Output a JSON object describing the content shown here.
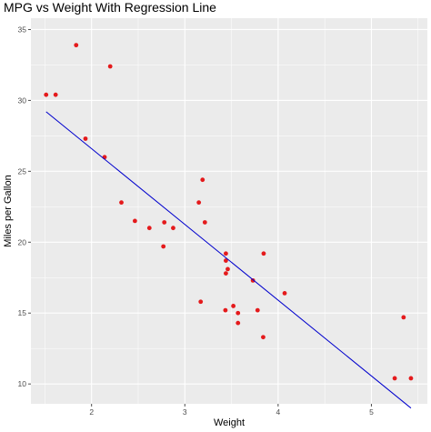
{
  "chart_data": {
    "type": "scatter",
    "title": "MPG vs Weight With Regression Line",
    "xlabel": "Weight",
    "ylabel": "Miles per Gallon",
    "xlim": [
      1.35,
      5.6
    ],
    "ylim": [
      8.6,
      35.8
    ],
    "x_ticks": [
      2,
      3,
      4,
      5
    ],
    "y_ticks": [
      10,
      15,
      20,
      25,
      30,
      35
    ],
    "grid": true,
    "legend": "none",
    "colors": {
      "panel": "#EBEBEB",
      "grid": "#FFFFFF",
      "points": "#E41A1C",
      "line": "#0000CD",
      "tick": "#4D4D4D"
    },
    "points": [
      {
        "x": 1.513,
        "y": 30.4
      },
      {
        "x": 1.615,
        "y": 30.4
      },
      {
        "x": 1.835,
        "y": 33.9
      },
      {
        "x": 1.935,
        "y": 27.3
      },
      {
        "x": 2.14,
        "y": 26.0
      },
      {
        "x": 2.2,
        "y": 32.4
      },
      {
        "x": 2.32,
        "y": 22.8
      },
      {
        "x": 2.465,
        "y": 21.5
      },
      {
        "x": 2.62,
        "y": 21.0
      },
      {
        "x": 2.77,
        "y": 19.7
      },
      {
        "x": 2.78,
        "y": 21.4
      },
      {
        "x": 2.875,
        "y": 21.0
      },
      {
        "x": 3.15,
        "y": 22.8
      },
      {
        "x": 3.17,
        "y": 15.8
      },
      {
        "x": 3.19,
        "y": 24.4
      },
      {
        "x": 3.215,
        "y": 21.4
      },
      {
        "x": 3.435,
        "y": 15.2
      },
      {
        "x": 3.44,
        "y": 18.7
      },
      {
        "x": 3.44,
        "y": 17.8
      },
      {
        "x": 3.44,
        "y": 19.2
      },
      {
        "x": 3.46,
        "y": 18.1
      },
      {
        "x": 3.52,
        "y": 15.5
      },
      {
        "x": 3.57,
        "y": 14.3
      },
      {
        "x": 3.57,
        "y": 15.0
      },
      {
        "x": 3.73,
        "y": 17.3
      },
      {
        "x": 3.78,
        "y": 15.2
      },
      {
        "x": 3.845,
        "y": 19.2
      },
      {
        "x": 3.84,
        "y": 13.3
      },
      {
        "x": 4.07,
        "y": 16.4
      },
      {
        "x": 5.25,
        "y": 10.4
      },
      {
        "x": 5.345,
        "y": 14.7
      },
      {
        "x": 5.424,
        "y": 10.4
      }
    ],
    "regression_line": {
      "x": [
        1.513,
        5.424
      ],
      "y": [
        29.2,
        8.3
      ]
    }
  }
}
